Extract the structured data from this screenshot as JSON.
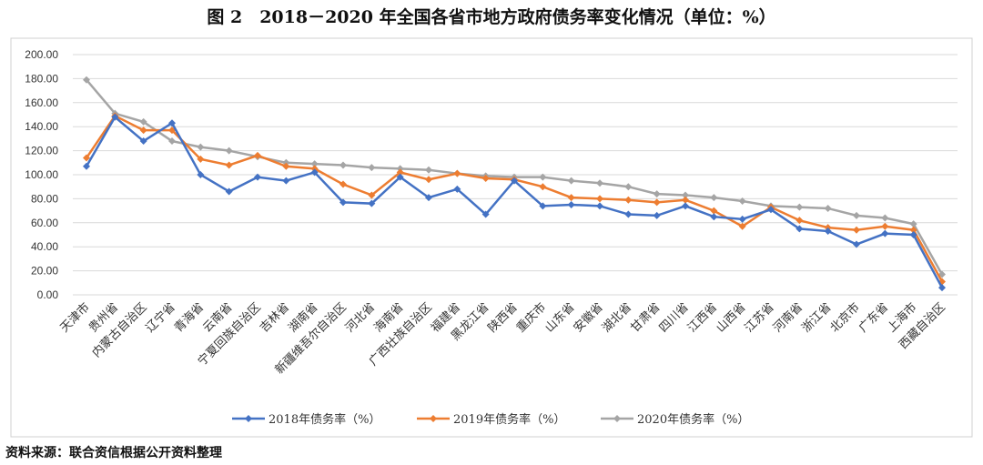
{
  "title": "图 2　2018－2020 年全国各省市地方政府债务率变化情况（单位：%）",
  "source": "资料来源：联合资信根据公开资料整理",
  "chart_data": {
    "type": "line",
    "title": "图 2　2018－2020 年全国各省市地方政府债务率变化情况（单位：%）",
    "ylim": [
      0,
      200
    ],
    "yticks": [
      "0.00",
      "20.00",
      "40.00",
      "60.00",
      "80.00",
      "100.00",
      "120.00",
      "140.00",
      "160.00",
      "180.00",
      "200.00"
    ],
    "grid": true,
    "legend_position": "bottom",
    "categories": [
      "天津市",
      "贵州省",
      "内蒙古自治区",
      "辽宁省",
      "青海省",
      "云南省",
      "宁夏回族自治区",
      "吉林省",
      "湖南省",
      "新疆维吾尔自治区",
      "河北省",
      "海南省",
      "广西壮族自治区",
      "福建省",
      "黑龙江省",
      "陕西省",
      "重庆市",
      "山东省",
      "安徽省",
      "湖北省",
      "甘肃省",
      "四川省",
      "江西省",
      "山西省",
      "江苏省",
      "河南省",
      "浙江省",
      "北京市",
      "广东省",
      "上海市",
      "西藏自治区"
    ],
    "series": [
      {
        "name": "2018年债务率（%）",
        "color": "#4472C4",
        "values": [
          107,
          148,
          128,
          143,
          100,
          86,
          98,
          95,
          102,
          77,
          76,
          98,
          81,
          88,
          67,
          95,
          74,
          75,
          74,
          67,
          66,
          74,
          65,
          63,
          71,
          55,
          53,
          42,
          51,
          50,
          6
        ]
      },
      {
        "name": "2019年债务率（%）",
        "color": "#ED7D31",
        "values": [
          114,
          149,
          137,
          137,
          113,
          108,
          116,
          107,
          105,
          92,
          83,
          102,
          96,
          101,
          97,
          96,
          90,
          81,
          80,
          79,
          77,
          79,
          70,
          57,
          73,
          62,
          56,
          54,
          57,
          54,
          11
        ]
      },
      {
        "name": "2020年债务率（%）",
        "color": "#A5A5A5",
        "values": [
          179,
          151,
          144,
          128,
          123,
          120,
          115,
          110,
          109,
          108,
          106,
          105,
          104,
          101,
          99,
          98,
          98,
          95,
          93,
          90,
          84,
          83,
          81,
          78,
          74,
          73,
          72,
          66,
          64,
          59,
          17
        ]
      }
    ]
  }
}
